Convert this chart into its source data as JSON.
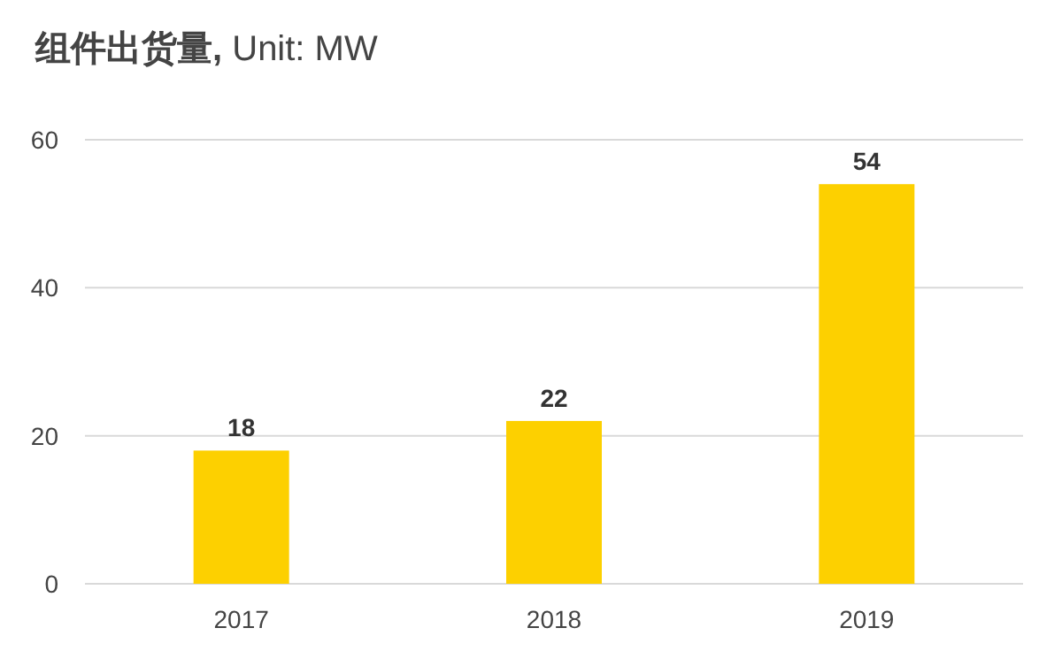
{
  "chart_data": {
    "type": "bar",
    "title": "**组件出货量,** Unit: MW",
    "categories": [
      "2017",
      "2018",
      "2019"
    ],
    "values": [
      18,
      22,
      54
    ],
    "color": "#fdd000",
    "ylim": [
      0,
      60
    ],
    "yticks": [
      0,
      20,
      40,
      60
    ],
    "grid": "y",
    "data_labels": true
  }
}
